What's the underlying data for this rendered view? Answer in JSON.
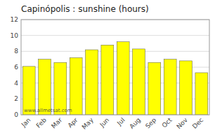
{
  "chart_data": {
    "type": "bar",
    "title": "Capinópolis : sunshine (hours)",
    "categories": [
      "Jan",
      "Feb",
      "Mar",
      "Apr",
      "May",
      "Jun",
      "Jul",
      "Aug",
      "Sep",
      "Oct",
      "Nov",
      "Dec"
    ],
    "values": [
      6.1,
      7.0,
      6.6,
      7.2,
      8.2,
      8.8,
      9.2,
      8.3,
      6.6,
      7.0,
      6.8,
      5.3
    ],
    "color": "#ffff00",
    "ylim": [
      0,
      12
    ],
    "yticks": [
      0,
      2,
      4,
      6,
      8,
      10,
      12
    ],
    "grid": true,
    "annotations": [
      "www.allmetsat.com"
    ]
  }
}
